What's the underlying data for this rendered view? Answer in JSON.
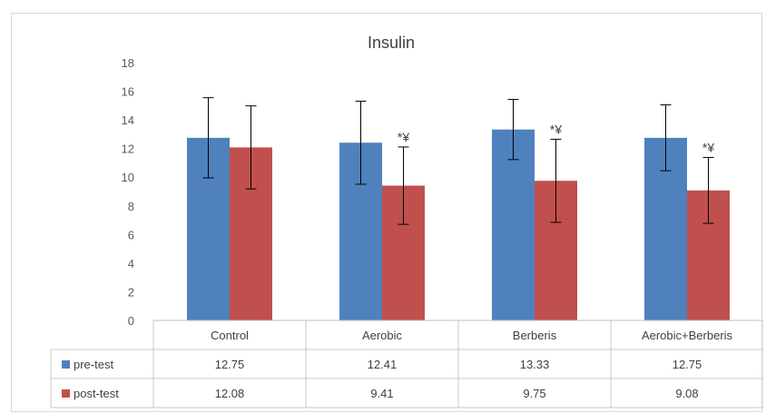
{
  "chart_data": {
    "type": "bar",
    "title": "Insulin",
    "categories": [
      "Control",
      "Aerobic",
      "Berberis",
      "Aerobic+Berberis"
    ],
    "ylim": [
      0,
      18
    ],
    "yticks": [
      0,
      2,
      4,
      6,
      8,
      10,
      12,
      14,
      16,
      18
    ],
    "grid": false,
    "legend": "data table below chart",
    "series": [
      {
        "name": "pre-test",
        "color": "#4f81bd",
        "values": [
          12.75,
          12.41,
          13.33,
          12.75
        ],
        "errors": [
          2.8,
          2.9,
          2.1,
          2.3
        ],
        "labels": [
          "12.75",
          "12.41",
          "13.33",
          "12.75"
        ]
      },
      {
        "name": "post-test",
        "color": "#c0504d",
        "values": [
          12.08,
          9.41,
          9.75,
          9.08
        ],
        "errors": [
          2.9,
          2.7,
          2.9,
          2.3
        ],
        "labels": [
          "12.08",
          "9.41",
          "9.75",
          "9.08"
        ]
      }
    ],
    "annotations": [
      {
        "category": "Aerobic",
        "series": "post-test",
        "text": "*¥"
      },
      {
        "category": "Berberis",
        "series": "post-test",
        "text": "*¥"
      },
      {
        "category": "Aerobic+Berberis",
        "series": "post-test",
        "text": "*¥"
      }
    ]
  }
}
